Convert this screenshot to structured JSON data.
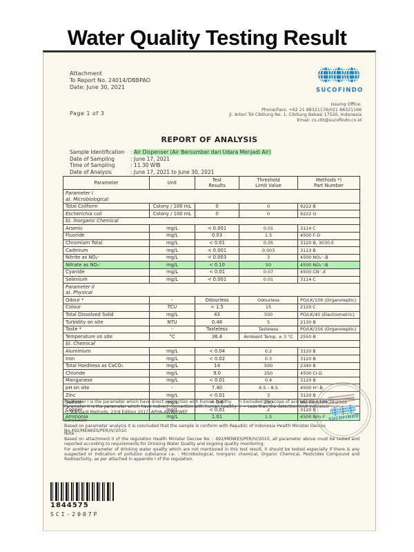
{
  "page_title": "Water Quality Testing Result",
  "colors": {
    "accent_blue": "#2286be",
    "highlight_green": "#b6eeb6",
    "paper": "#fbf8ee"
  },
  "icons": {
    "logo": "sucofindo-globes-icon",
    "stamp": "sucofindo-round-stamp-icon",
    "barcode": "barcode-stripes-icon"
  },
  "doc": {
    "attachment": {
      "line1": "Attachment",
      "line2": "To Report No. 24014/DBBPAO",
      "line3": "Date: June 30, 2021",
      "page_info": "Page 1 of 3"
    },
    "issuer": {
      "logo_text": "SUCOFINDO",
      "office_label": "Issuing Office:",
      "phone": "Phone/Facs: +62 21 88321176/021 88321166",
      "address": "Jl. Arteri Tol Cibitung No. 1, Cibitung Bekasi 17520, Indonesia",
      "email": "Email: cs.cbt@sucofindo.co.id"
    },
    "report_title": "REPORT OF ANALYSIS",
    "sample_info": {
      "separator": ":",
      "rows": [
        {
          "label": "Sample Identification",
          "value": "Air Dispenser (Air Bersumber dari Udara Menjadi Air)",
          "highlight": true
        },
        {
          "label": "Date of Sampling",
          "value": "June 17, 2021"
        },
        {
          "label": "Time of Sampling",
          "value": "11.30 WIB"
        },
        {
          "label": "Date of Analysis",
          "value": "June 17, 2021 to June 30, 2021"
        }
      ]
    },
    "table": {
      "headers": [
        "Parameter",
        "Unit",
        "Test\nResults",
        "Threshold\nLimit Value",
        "Methods *)\nPart Number"
      ],
      "rows": [
        {
          "type": "section",
          "lines": [
            "Parameter I",
            "a). Microbiological"
          ]
        },
        {
          "type": "data",
          "cells": [
            "Total Coliform",
            "Colony / 100 mL",
            "0",
            "0",
            "9222 B"
          ]
        },
        {
          "type": "data",
          "italic": true,
          "cells": [
            "Escherichia coli",
            "Colony / 100 mL",
            "0",
            "0",
            "9222 G"
          ]
        },
        {
          "type": "section",
          "lines": [
            "b). Inorganic Chemical"
          ]
        },
        {
          "type": "data",
          "cells": [
            "Arsenic",
            "mg/L",
            "< 0.001",
            "0.01",
            "3114 C"
          ]
        },
        {
          "type": "data",
          "cells": [
            "Fluoride",
            "mg/L",
            "0.03",
            "1.5",
            "4500 F-D"
          ]
        },
        {
          "type": "data",
          "cells": [
            "Chromium Total",
            "mg/L",
            "< 0.01",
            "0.05",
            "3120 B, 3030 E"
          ]
        },
        {
          "type": "data",
          "cells": [
            "Cadmium",
            "mg/L",
            "< 0.001",
            "0.003",
            "3113 B"
          ]
        },
        {
          "type": "data",
          "cells": [
            "Nitrite as NO₂⁻",
            "mg/L",
            "< 0.003",
            "3",
            "4500 NO₂⁻-B"
          ]
        },
        {
          "type": "data",
          "highlight": true,
          "cells": [
            "Nitrate as NO₃⁻",
            "mg/L",
            "< 0.10",
            "50",
            "4500 NO₃⁻-B"
          ]
        },
        {
          "type": "data",
          "cells": [
            "Cyanide",
            "mg/L",
            "< 0.01",
            "0.07",
            "4500 CN⁻-E"
          ]
        },
        {
          "type": "data",
          "cells": [
            "Selenium",
            "mg/L",
            "< 0.001",
            "0.01",
            "3114 C"
          ]
        },
        {
          "type": "section",
          "lines": [
            "Parameter II",
            "a). Physical"
          ]
        },
        {
          "type": "data",
          "cells": [
            "Odour *",
            "-",
            "Odourless",
            "Odourless",
            "PO/LK/156 (Organoleptic)"
          ]
        },
        {
          "type": "data",
          "cells": [
            "Colour",
            "TCU",
            "< 1.5",
            "15",
            "2120 C"
          ]
        },
        {
          "type": "data",
          "cells": [
            "Total Dissolved Solid",
            "mg/L",
            "43",
            "500",
            "PO/LK/40 (Electrometric)"
          ]
        },
        {
          "type": "data",
          "cells": [
            "Turbidity on site",
            "NTU",
            "0.48",
            "5",
            "2130 B"
          ]
        },
        {
          "type": "data",
          "cells": [
            "Taste *",
            "-",
            "Tasteless",
            "Tasteless",
            "PO/LK/156 (Organoleptic)"
          ]
        },
        {
          "type": "data",
          "cells": [
            "Temperature on site",
            "°C",
            "36.4",
            "Ambient Temp. ± 3 °C",
            "2550 B"
          ]
        },
        {
          "type": "section",
          "lines": [
            "b). Chemical"
          ]
        },
        {
          "type": "data",
          "cells": [
            "Aluminium",
            "mg/L",
            "< 0.04",
            "0.2",
            "3120 B"
          ]
        },
        {
          "type": "data",
          "cells": [
            "Iron",
            "mg/L",
            "< 0.02",
            "0.3",
            "3120 B"
          ]
        },
        {
          "type": "data",
          "cells": [
            "Total Hardness as CaCO₃",
            "mg/L",
            "14",
            "500",
            "2340 B"
          ]
        },
        {
          "type": "data",
          "cells": [
            "Chloride",
            "mg/L",
            "9.0",
            "250",
            "4500 Cl-D"
          ]
        },
        {
          "type": "data",
          "cells": [
            "Manganese",
            "mg/L",
            "< 0.01",
            "0.4",
            "3120 B"
          ]
        },
        {
          "type": "data",
          "cells": [
            "pH on site",
            "-",
            "7.40",
            "6.5 – 8.5",
            "4500 H⁺-B"
          ]
        },
        {
          "type": "data",
          "cells": [
            "Zinc",
            "mg/L",
            "< 0.01",
            "3",
            "3120 B"
          ]
        },
        {
          "type": "data",
          "cells": [
            "Sulfate",
            "mg/L",
            "< 0.6",
            "250",
            "SNI 06-6989.20:2009"
          ]
        },
        {
          "type": "data",
          "cells": [
            "Copper",
            "mg/L",
            "< 0.01",
            "2",
            "3120 B"
          ]
        },
        {
          "type": "data",
          "highlight": true,
          "cells": [
            "Ammonia",
            "mg/L",
            "1.01",
            "1.5",
            "4500 NH₃-F"
          ]
        }
      ]
    },
    "footnotes": {
      "left": [
        "Parameter I is the parameter which have direct connection with human healthy",
        "Parameter II is the parameter which have indirect connection with human healthy",
        "•) Standard Methods, 23rd Edition 2017, APHA-AWWA-WEF"
      ],
      "right": [
        "*) Excluded the scope of accreditation KAN",
        "< = Less than the detection limit indicated"
      ]
    },
    "conclusion": {
      "heading": "Conclusion",
      "text": "Based on parameter analysis it is concluded that the sample is conform with Republic of Indonesia Health Minister Decree No.492/MENKES/PER/IV/2010."
    },
    "note": {
      "heading": "Note :",
      "p1": "Based on attachment II of the regulation Health Minister Decree No. : 492/MENKES/PER/IV/2010, all parameter above must be tested and reported according to requirements for Drinking Water Quality and ongoing quality monitoring.",
      "p2": "For another parameter of drinking water quality which are not mentioned in this test result, it should be tested especially if there is any suspected or indication of pollution substance i.e. : Microbiological, Inorganic chemical, Organic Chemical, Pesticides Compound and Radioactivity, as per attached in appendix I of the regulation."
    },
    "stamp_text": "SUCOFINDO",
    "barcode": {
      "number": "1844575",
      "code": "SCI-2007P"
    }
  }
}
